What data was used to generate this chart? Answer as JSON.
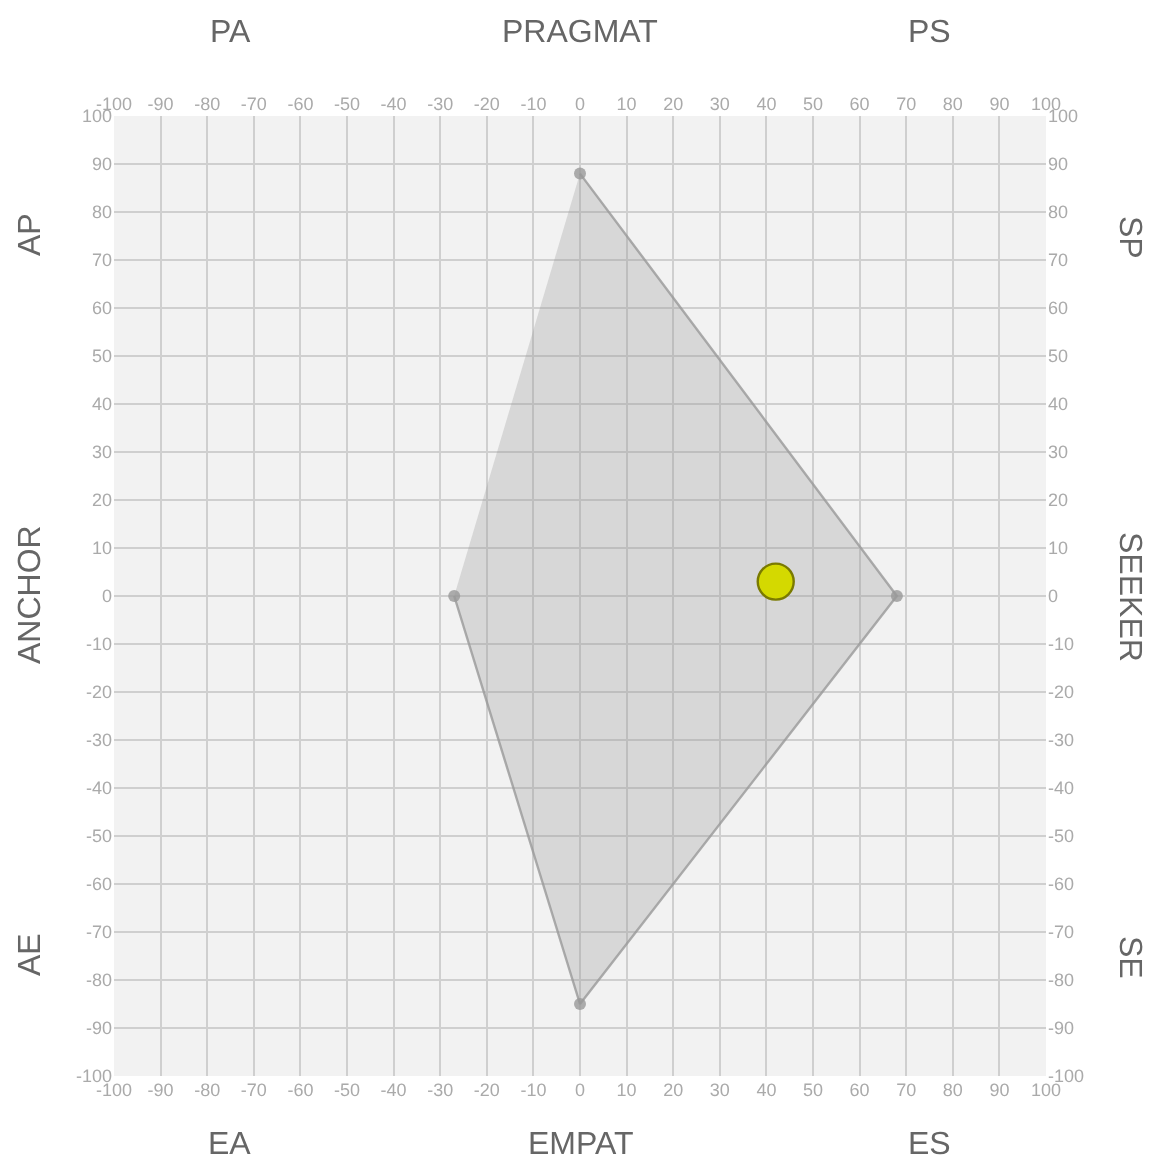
{
  "chart_data": {
    "type": "scatter",
    "series": [
      {
        "type": "area",
        "color": "#999999",
        "x": [
          0,
          68,
          0,
          -27
        ],
        "values": [
          88,
          0,
          -85,
          0
        ],
        "marker": "circle"
      },
      {
        "color": "#d4d900",
        "x": [
          42
        ],
        "values": [
          3
        ],
        "marker": "circle"
      }
    ],
    "xlim": [
      -100,
      100
    ],
    "xticks": [
      -100,
      -90,
      -80,
      -70,
      -60,
      -50,
      -40,
      -30,
      -20,
      -10,
      0,
      10,
      20,
      30,
      40,
      50,
      60,
      70,
      80,
      90,
      100
    ],
    "x2lim": [
      -100,
      100
    ],
    "x2ticks": [
      -100,
      -90,
      -80,
      -70,
      -60,
      -50,
      -40,
      -30,
      -20,
      -10,
      0,
      10,
      20,
      30,
      40,
      50,
      60,
      70,
      80,
      90,
      100
    ],
    "ylim": [
      -100,
      100
    ],
    "yticks": [
      -100,
      -90,
      -80,
      -70,
      -60,
      -50,
      -40,
      -30,
      -20,
      -10,
      0,
      10,
      20,
      30,
      40,
      50,
      60,
      70,
      80,
      90,
      100
    ],
    "y2lim": [
      -100,
      100
    ],
    "y2ticks": [
      -100,
      -90,
      -80,
      -70,
      -60,
      -50,
      -40,
      -30,
      -20,
      -10,
      0,
      10,
      20,
      30,
      40,
      50,
      60,
      70,
      80,
      90,
      100
    ],
    "grid": true,
    "annotations": [
      "PA",
      "PRAGMAT",
      "PS",
      "AP",
      "ANCHOR",
      "AE",
      "SP",
      "SEEKER",
      "SE",
      "EA",
      "EMPAT",
      "ES"
    ]
  }
}
